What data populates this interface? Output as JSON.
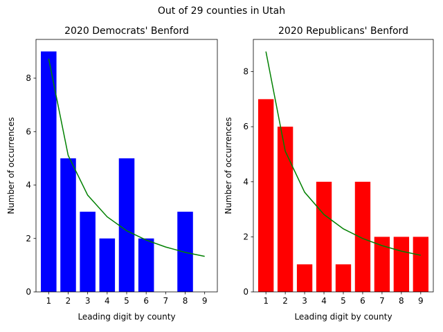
{
  "suptitle": "Out of 29 counties in Utah",
  "chart_data": [
    {
      "type": "bar",
      "title": "2020 Democrats' Benford",
      "xlabel": "Leading digit by county",
      "ylabel": "Number of occurrences",
      "categories": [
        "1",
        "2",
        "3",
        "4",
        "5",
        "6",
        "7",
        "8",
        "9"
      ],
      "values": [
        9,
        5,
        3,
        2,
        5,
        2,
        0,
        3,
        0
      ],
      "bar_color": "#0000ff",
      "line": {
        "color": "#008000",
        "values": [
          8.73,
          5.11,
          3.62,
          2.81,
          2.29,
          1.94,
          1.68,
          1.48,
          1.33
        ]
      },
      "ylim": [
        0,
        9.45
      ],
      "yticks": [
        0,
        2,
        4,
        6,
        8
      ],
      "grid": false
    },
    {
      "type": "bar",
      "title": "2020 Republicans' Benford",
      "xlabel": "Leading digit by county",
      "ylabel": "Number of occurrences",
      "categories": [
        "1",
        "2",
        "3",
        "4",
        "5",
        "6",
        "7",
        "8",
        "9"
      ],
      "values": [
        7,
        6,
        1,
        4,
        1,
        4,
        2,
        2,
        2
      ],
      "bar_color": "#ff0000",
      "line": {
        "color": "#008000",
        "values": [
          8.73,
          5.11,
          3.62,
          2.81,
          2.29,
          1.94,
          1.68,
          1.48,
          1.33
        ]
      },
      "ylim": [
        0,
        9.17
      ],
      "yticks": [
        0,
        2,
        4,
        6,
        8
      ],
      "grid": false
    }
  ]
}
